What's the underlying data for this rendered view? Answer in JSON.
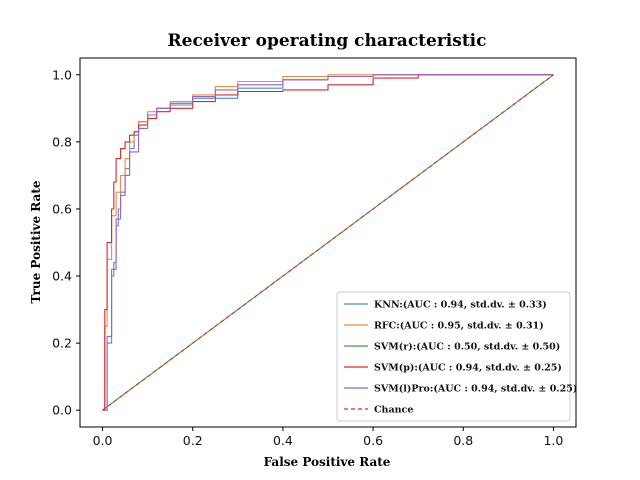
{
  "chart_data": {
    "type": "line",
    "title": "Receiver operating characteristic",
    "xlabel": "False Positive Rate",
    "ylabel": "True Positive Rate",
    "xlim": [
      -0.05,
      1.05
    ],
    "ylim": [
      -0.05,
      1.05
    ],
    "xticks": [
      "0.0",
      "0.2",
      "0.4",
      "0.6",
      "0.8",
      "1.0"
    ],
    "yticks": [
      "0.0",
      "0.2",
      "0.4",
      "0.6",
      "0.8",
      "1.0"
    ],
    "grid": false,
    "legend_position": "lower-right",
    "series": [
      {
        "name": "KNN:(AUC : 0.94, std.dv. ± 0.33)",
        "color": "#4c8fd0",
        "style": "solid",
        "x": [
          0,
          0.01,
          0.02,
          0.025,
          0.03,
          0.035,
          0.04,
          0.05,
          0.06,
          0.07,
          0.08,
          0.1,
          0.12,
          0.15,
          0.2,
          0.3,
          0.4,
          0.5,
          0.6,
          1.0
        ],
        "y": [
          0,
          0.2,
          0.4,
          0.44,
          0.55,
          0.6,
          0.65,
          0.72,
          0.78,
          0.82,
          0.86,
          0.88,
          0.9,
          0.91,
          0.93,
          0.96,
          0.985,
          0.995,
          1.0,
          1.0
        ]
      },
      {
        "name": "RFC:(AUC : 0.95, std.dv. ± 0.31)",
        "color": "#f08c3c",
        "style": "solid",
        "x": [
          0,
          0.005,
          0.01,
          0.02,
          0.03,
          0.04,
          0.05,
          0.06,
          0.07,
          0.08,
          0.1,
          0.12,
          0.15,
          0.2,
          0.25,
          0.3,
          0.4,
          0.5,
          0.6,
          1.0
        ],
        "y": [
          0,
          0.25,
          0.45,
          0.58,
          0.65,
          0.7,
          0.75,
          0.8,
          0.83,
          0.86,
          0.89,
          0.9,
          0.92,
          0.94,
          0.965,
          0.98,
          0.995,
          1.0,
          1.0,
          1.0
        ]
      },
      {
        "name": "SVM(r):(AUC : 0.50, std.dv. ± 0.50)",
        "color": "#3ea03e",
        "style": "solid",
        "x": [
          0,
          1.0
        ],
        "y": [
          0,
          1.0
        ]
      },
      {
        "name": "SVM(p):(AUC : 0.94, std.dv. ± 0.25)",
        "color": "#d62a2a",
        "style": "solid",
        "x": [
          0,
          0.005,
          0.01,
          0.02,
          0.025,
          0.03,
          0.04,
          0.05,
          0.06,
          0.07,
          0.08,
          0.1,
          0.12,
          0.15,
          0.2,
          0.25,
          0.3,
          0.4,
          0.5,
          0.6,
          0.7,
          1.0
        ],
        "y": [
          0,
          0.3,
          0.5,
          0.6,
          0.68,
          0.75,
          0.78,
          0.8,
          0.82,
          0.83,
          0.85,
          0.87,
          0.89,
          0.9,
          0.92,
          0.94,
          0.95,
          0.955,
          0.97,
          0.99,
          1.0,
          1.0
        ]
      },
      {
        "name": "SVM(l)Pro:(AUC : 0.94, std.dv. ± 0.25)",
        "color": "#9b5fc8",
        "style": "solid",
        "x": [
          0,
          0.01,
          0.02,
          0.03,
          0.04,
          0.05,
          0.06,
          0.08,
          0.1,
          0.12,
          0.15,
          0.2,
          0.25,
          0.3,
          0.4,
          0.5,
          0.6,
          1.0
        ],
        "y": [
          0,
          0.22,
          0.42,
          0.57,
          0.64,
          0.7,
          0.77,
          0.84,
          0.88,
          0.9,
          0.915,
          0.935,
          0.955,
          0.97,
          0.985,
          0.995,
          1.0,
          1.0
        ]
      },
      {
        "name": "Chance",
        "color": "#d62a2a",
        "style": "dashed",
        "x": [
          0,
          1.0
        ],
        "y": [
          0,
          1.0
        ]
      }
    ]
  }
}
